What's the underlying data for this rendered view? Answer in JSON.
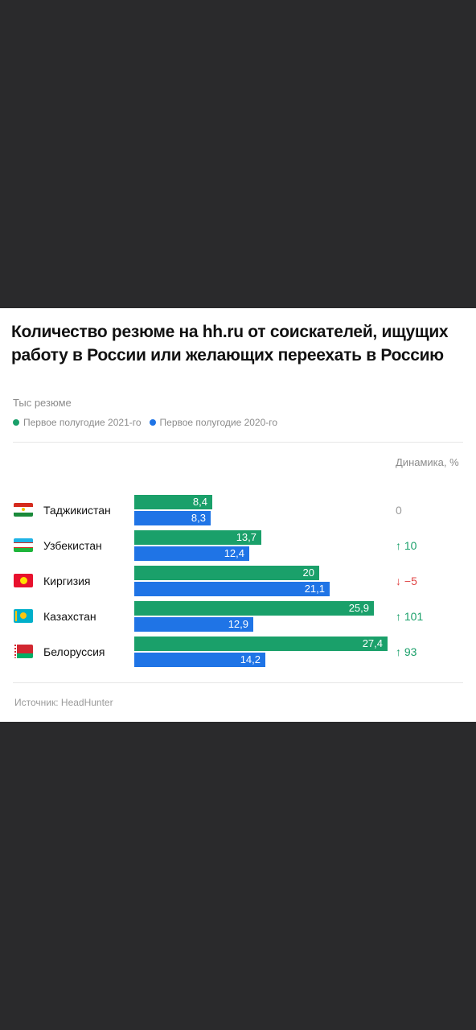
{
  "title": "Количество резюме на hh.ru от соискателей, ищущих работу в России или желающих переехать в Россию",
  "units": "Тыс резюме",
  "dynamics_header": "Динамика, %",
  "source": "Источник: HeadHunter",
  "colors": {
    "series_2021": "#1aa06a",
    "series_2020": "#1f74e6",
    "up": "#1aa06a",
    "down": "#e04545",
    "neutral": "#9a9a9a"
  },
  "chart_data": {
    "type": "bar",
    "orientation": "horizontal",
    "categories": [
      "Таджикистан",
      "Узбекистан",
      "Киргизия",
      "Казахстан",
      "Белоруссия"
    ],
    "series": [
      {
        "name": "Первое полугодие 2021-го",
        "values": [
          8.4,
          13.7,
          20,
          25.9,
          27.4
        ],
        "labels": [
          "8,4",
          "13,7",
          "20",
          "25,9",
          "27,4"
        ]
      },
      {
        "name": "Первое полугодие 2020-го",
        "values": [
          8.3,
          12.4,
          21.1,
          12.9,
          14.2
        ],
        "labels": [
          "8,3",
          "12,4",
          "21,1",
          "12,9",
          "14,2"
        ]
      }
    ],
    "dynamics": [
      {
        "text": "0",
        "direction": "none"
      },
      {
        "text": "↑ 10",
        "direction": "up"
      },
      {
        "text": "↓ −5",
        "direction": "down"
      },
      {
        "text": "↑ 101",
        "direction": "up"
      },
      {
        "text": "↑ 93",
        "direction": "up"
      }
    ],
    "flags": [
      "tajikistan-flag",
      "uzbekistan-flag",
      "kyrgyzstan-flag",
      "kazakhstan-flag",
      "belarus-flag"
    ],
    "xlim": [
      0,
      27.4
    ]
  }
}
